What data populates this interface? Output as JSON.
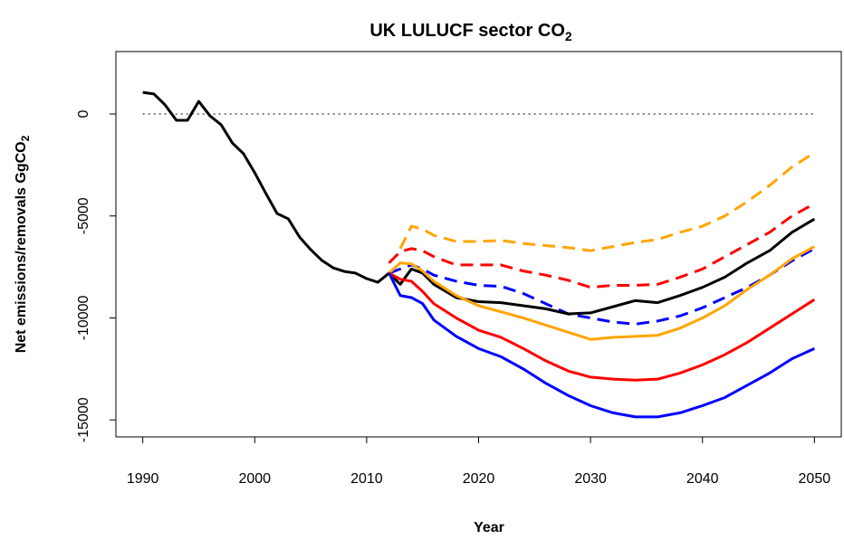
{
  "chart_data": {
    "type": "line",
    "title": "UK LULUCF sector CO",
    "title_subscript": "2",
    "x_label": "Year",
    "y_label": "Net emissions/removals GgCO",
    "y_label_subscript": "2",
    "xlim": [
      1987.6,
      2052.4
    ],
    "ylim": [
      -15830,
      3060
    ],
    "xticks": [
      1990,
      2000,
      2010,
      2020,
      2030,
      2040,
      2050
    ],
    "yticks": [
      0,
      -5000,
      -10000,
      -15000
    ],
    "hline": 0,
    "series": [
      {
        "color": "#000000",
        "dash": false,
        "x": [
          1990,
          1991,
          1992,
          1993,
          1994,
          1995,
          1996,
          1997,
          1998,
          1999,
          2000,
          2001,
          2002,
          2003,
          2004,
          2005,
          2006,
          2007,
          2008,
          2009,
          2010,
          2011,
          2012
        ],
        "values": [
          1060,
          980,
          440,
          -310,
          -310,
          620,
          -90,
          -530,
          -1420,
          -1950,
          -2880,
          -3900,
          -4880,
          -5140,
          -6030,
          -6650,
          -7180,
          -7540,
          -7720,
          -7800,
          -8070,
          -8250,
          -7800
        ]
      },
      {
        "color": "#FFA500",
        "dash": true,
        "x": [
          2013,
          2014,
          2015,
          2016,
          2018,
          2020,
          2022,
          2024,
          2026,
          2028,
          2030,
          2032,
          2034,
          2036,
          2038,
          2040,
          2042,
          2044,
          2046,
          2048,
          2050
        ],
        "values": [
          -6600,
          -5500,
          -5650,
          -5950,
          -6250,
          -6250,
          -6200,
          -6350,
          -6450,
          -6550,
          -6700,
          -6500,
          -6300,
          -6150,
          -5800,
          -5500,
          -5000,
          -4300,
          -3500,
          -2600,
          -1900
        ]
      },
      {
        "color": "#FF0000",
        "dash": true,
        "x": [
          2012,
          2013,
          2014,
          2015,
          2016,
          2018,
          2020,
          2022,
          2024,
          2026,
          2028,
          2030,
          2032,
          2034,
          2036,
          2038,
          2040,
          2042,
          2044,
          2046,
          2048,
          2050
        ],
        "values": [
          -7300,
          -6750,
          -6600,
          -6700,
          -7000,
          -7400,
          -7400,
          -7400,
          -7700,
          -7900,
          -8150,
          -8500,
          -8400,
          -8400,
          -8350,
          -8000,
          -7600,
          -7000,
          -6400,
          -5800,
          -5000,
          -4400
        ]
      },
      {
        "color": "#0000FF",
        "dash": true,
        "x": [
          2012,
          2013,
          2014,
          2015,
          2016,
          2018,
          2020,
          2022,
          2024,
          2026,
          2028,
          2030,
          2032,
          2034,
          2036,
          2038,
          2040,
          2042,
          2044,
          2046,
          2048,
          2050
        ],
        "values": [
          -7800,
          -7600,
          -7400,
          -7600,
          -7900,
          -8200,
          -8400,
          -8450,
          -8800,
          -9300,
          -9800,
          -10000,
          -10200,
          -10300,
          -10150,
          -9900,
          -9500,
          -9000,
          -8500,
          -7900,
          -7200,
          -6600
        ]
      },
      {
        "color": "#000000",
        "dash": false,
        "x": [
          2012,
          2013,
          2014,
          2015,
          2016,
          2018,
          2020,
          2022,
          2024,
          2026,
          2028,
          2030,
          2032,
          2034,
          2036,
          2038,
          2040,
          2042,
          2044,
          2046,
          2048,
          2050
        ],
        "values": [
          -7800,
          -8350,
          -7600,
          -7800,
          -8350,
          -9000,
          -9200,
          -9250,
          -9400,
          -9550,
          -9800,
          -9750,
          -9450,
          -9150,
          -9250,
          -8900,
          -8500,
          -8000,
          -7300,
          -6700,
          -5800,
          -5150
        ]
      },
      {
        "color": "#FFA500",
        "dash": false,
        "x": [
          2012,
          2013,
          2014,
          2015,
          2016,
          2018,
          2020,
          2022,
          2024,
          2026,
          2028,
          2030,
          2032,
          2034,
          2036,
          2038,
          2040,
          2042,
          2044,
          2046,
          2048,
          2050
        ],
        "values": [
          -7800,
          -7300,
          -7350,
          -7700,
          -8200,
          -8900,
          -9400,
          -9700,
          -10000,
          -10350,
          -10700,
          -11050,
          -10950,
          -10900,
          -10850,
          -10500,
          -10000,
          -9400,
          -8600,
          -7900,
          -7100,
          -6500
        ]
      },
      {
        "color": "#FF0000",
        "dash": false,
        "x": [
          2012,
          2013,
          2014,
          2015,
          2016,
          2018,
          2020,
          2022,
          2024,
          2026,
          2028,
          2030,
          2032,
          2034,
          2036,
          2038,
          2040,
          2042,
          2044,
          2046,
          2048,
          2050
        ],
        "values": [
          -7800,
          -8100,
          -8200,
          -8700,
          -9300,
          -10000,
          -10600,
          -10950,
          -11500,
          -12100,
          -12600,
          -12900,
          -13000,
          -13050,
          -13000,
          -12700,
          -12300,
          -11800,
          -11200,
          -10500,
          -9800,
          -9100
        ]
      },
      {
        "color": "#0000FF",
        "dash": false,
        "x": [
          2012,
          2013,
          2014,
          2015,
          2016,
          2018,
          2020,
          2022,
          2024,
          2026,
          2028,
          2030,
          2032,
          2034,
          2036,
          2038,
          2040,
          2042,
          2044,
          2046,
          2048,
          2050
        ],
        "values": [
          -7800,
          -8900,
          -9000,
          -9300,
          -10100,
          -10900,
          -11500,
          -11900,
          -12500,
          -13200,
          -13800,
          -14300,
          -14650,
          -14850,
          -14850,
          -14650,
          -14300,
          -13900,
          -13300,
          -12700,
          -12000,
          -11500
        ]
      }
    ]
  }
}
